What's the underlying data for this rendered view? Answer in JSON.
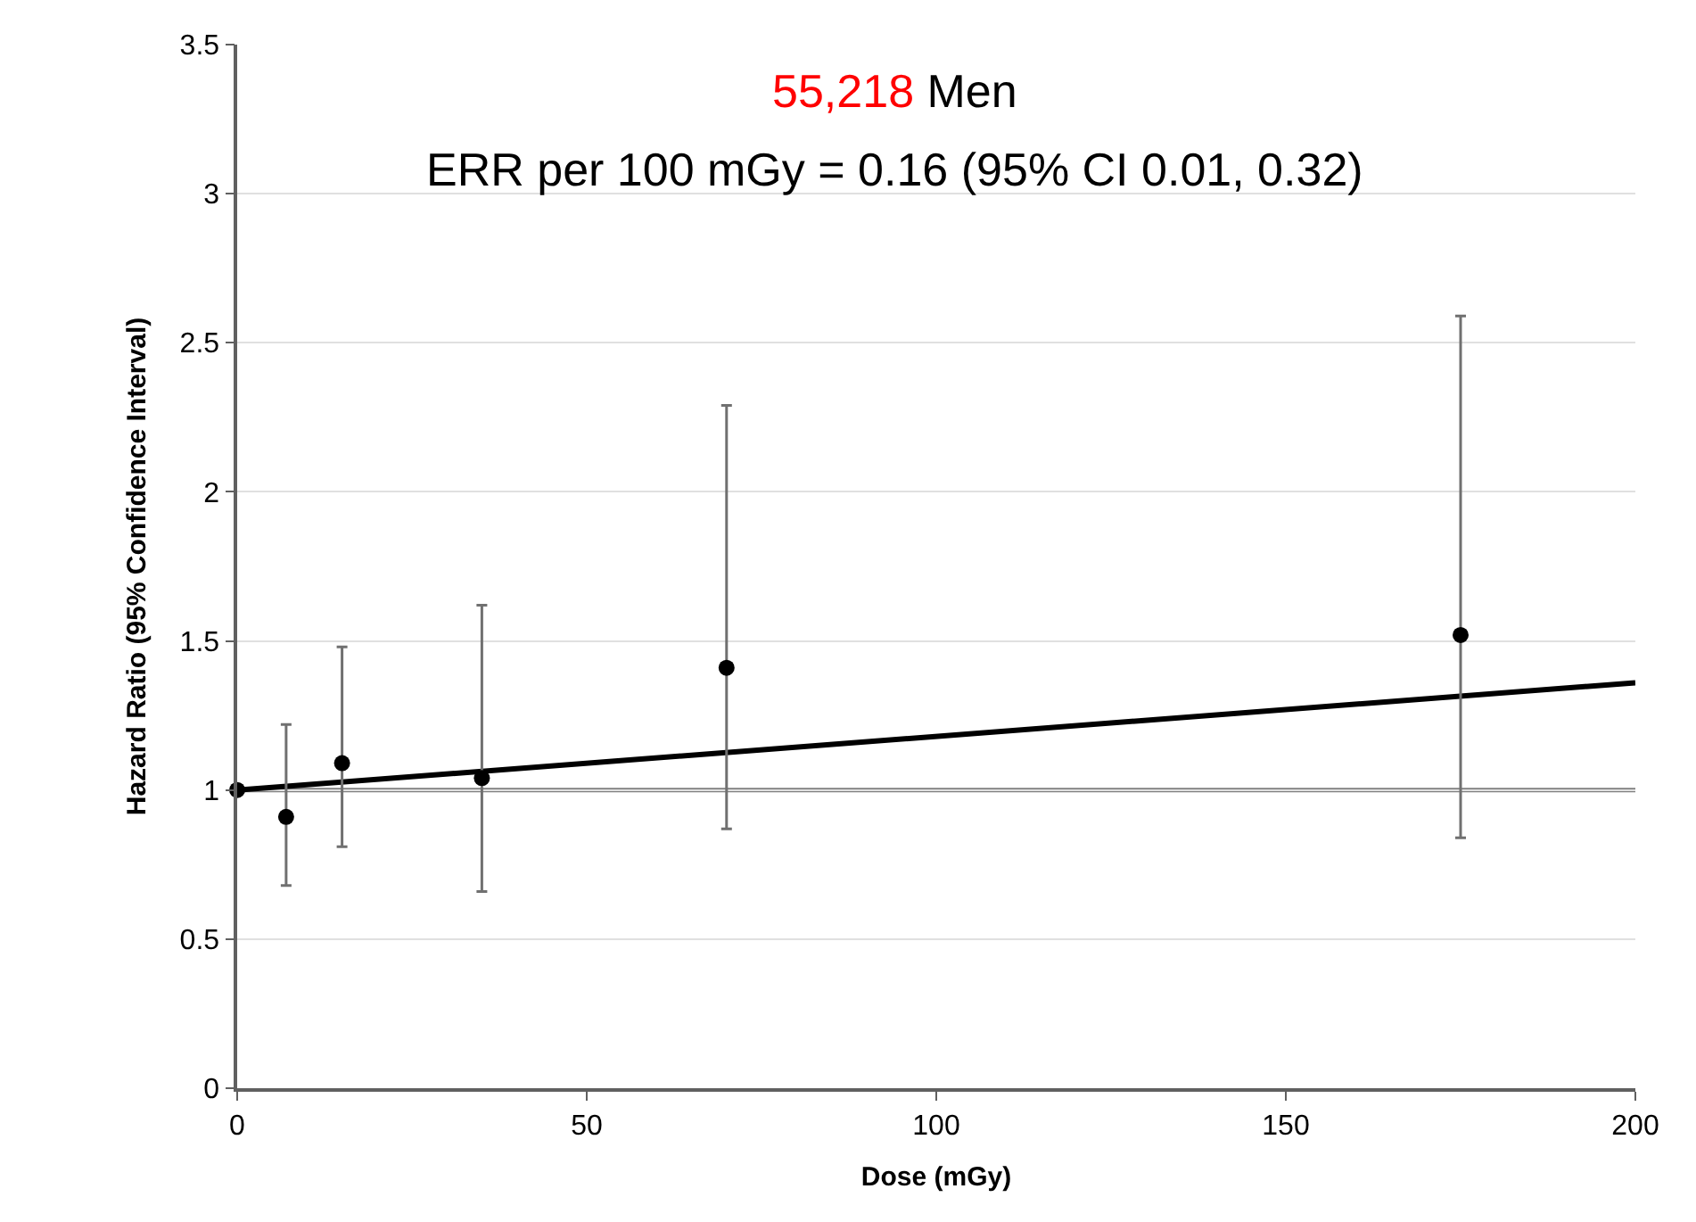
{
  "chart_data": {
    "type": "scatter",
    "title": "55,218 Men",
    "subtitle": "ERR per 100 mGy = 0.16 (95% CI 0.01, 0.32)",
    "xlabel": "Dose (mGy)",
    "ylabel": "Hazard Ratio (95% Confidence Interval)",
    "series": [
      {
        "color": "#000000",
        "marker": "circle",
        "x": [
          0,
          7,
          15,
          35,
          70,
          175
        ],
        "values": [
          1,
          0.91,
          1.09,
          1.04,
          1.41,
          1.52
        ],
        "errors": [
          null,
          [
            0.68,
            1.22
          ],
          [
            0.81,
            1.48
          ],
          [
            0.66,
            1.62
          ],
          [
            0.87,
            2.29
          ],
          [
            0.84,
            2.59
          ]
        ]
      },
      {
        "type": "line",
        "color": "#000000",
        "x": [
          0,
          200
        ],
        "values": [
          1,
          1.36
        ]
      }
    ],
    "ref_lines": [
      {
        "axis": "y",
        "value": 1,
        "color": "#808080"
      }
    ],
    "xlim": [
      0,
      200
    ],
    "xticks": [
      0,
      50,
      100,
      150,
      200
    ],
    "ylim": [
      0,
      3.5
    ],
    "yticks": [
      0,
      0.5,
      1,
      1.5,
      2,
      2.5,
      3,
      3.5
    ],
    "grid": "y",
    "legend": false
  }
}
